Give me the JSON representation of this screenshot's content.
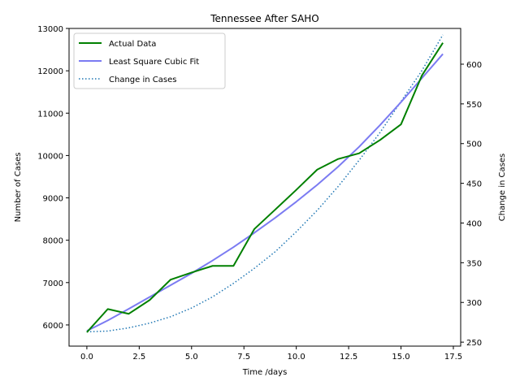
{
  "chart_data": {
    "type": "line",
    "title": "Tennessee After SAHO",
    "xlabel": "Time /days",
    "ylabel": "Number of Cases",
    "y2label": "Change in Cases",
    "xlim": [
      -0.85,
      17.85
    ],
    "ylim": [
      5500,
      13000
    ],
    "y2lim": [
      245,
      645
    ],
    "xticks": [
      "0.0",
      "2.5",
      "5.0",
      "7.5",
      "10.0",
      "12.5",
      "15.0",
      "17.5"
    ],
    "yticks": [
      "6000",
      "7000",
      "8000",
      "9000",
      "10000",
      "11000",
      "12000",
      "13000"
    ],
    "y2ticks": [
      "250",
      "300",
      "350",
      "400",
      "450",
      "500",
      "550",
      "600"
    ],
    "legend_position": "top-left",
    "grid": false,
    "x": [
      0,
      1,
      2,
      3,
      4,
      5,
      6,
      7,
      8,
      9,
      10,
      11,
      12,
      13,
      14,
      15,
      16,
      17
    ],
    "series": [
      {
        "name": "Actual Data",
        "axis": "left",
        "color": "#008000",
        "style": "solid",
        "values": [
          5827,
          6375,
          6263,
          6589,
          7070,
          7238,
          7394,
          7394,
          8266,
          8726,
          9189,
          9667,
          9918,
          10052,
          10366,
          10735,
          11891,
          12661
        ]
      },
      {
        "name": "Least Square Cubic Fit",
        "axis": "left",
        "color": "#7b7bf2",
        "style": "solid",
        "values": [
          5860,
          6106,
          6379,
          6661,
          6938,
          7219,
          7520,
          7837,
          8176,
          8532,
          8909,
          9308,
          9737,
          10205,
          10719,
          11260,
          11827,
          12397
        ]
      },
      {
        "name": "Change in Cases",
        "axis": "right",
        "color": "#1f77b4",
        "style": "dotted",
        "values": [
          263,
          264,
          268,
          274,
          282,
          293,
          307,
          324,
          343,
          364,
          389,
          416,
          446,
          479,
          514,
          553,
          592,
          637
        ]
      }
    ]
  }
}
